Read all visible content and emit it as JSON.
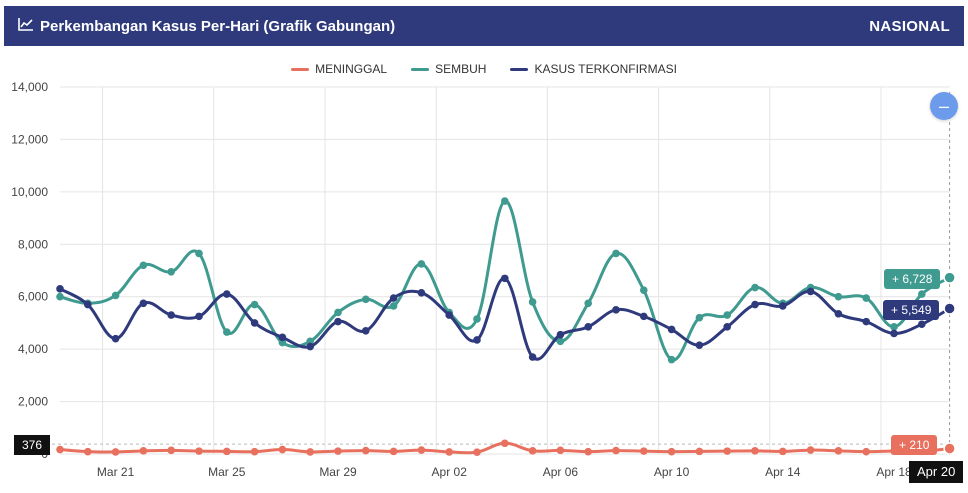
{
  "header": {
    "title": "Perkembangan Kasus Per-Hari (Grafik Gabungan)",
    "region": "NASIONAL",
    "icon": "line-chart-icon"
  },
  "zoom_button": {
    "label": "–",
    "icon": "minus-icon"
  },
  "tooltips": {
    "sembuh": "+ 6,728",
    "konfirmasi": "+ 5,549",
    "meninggal": "+ 210",
    "crosshair_y": "376",
    "crosshair_x": "Apr 20"
  },
  "colors": {
    "header": "#2e3a7c",
    "meninggal": "#e8705e",
    "sembuh": "#3f9a8f",
    "konfirmasi": "#2e3a7c"
  },
  "chart_data": {
    "type": "line",
    "x": [
      "Mar 19",
      "Mar 20",
      "Mar 21",
      "Mar 22",
      "Mar 23",
      "Mar 24",
      "Mar 25",
      "Mar 26",
      "Mar 27",
      "Mar 28",
      "Mar 29",
      "Mar 30",
      "Mar 31",
      "Apr 01",
      "Apr 02",
      "Apr 03",
      "Apr 04",
      "Apr 05",
      "Apr 06",
      "Apr 07",
      "Apr 08",
      "Apr 09",
      "Apr 10",
      "Apr 11",
      "Apr 12",
      "Apr 13",
      "Apr 14",
      "Apr 15",
      "Apr 16",
      "Apr 17",
      "Apr 18",
      "Apr 19",
      "Apr 20"
    ],
    "xticks": [
      "Mar 21",
      "Mar 25",
      "Mar 29",
      "Apr 02",
      "Apr 06",
      "Apr 10",
      "Apr 14",
      "Apr 18"
    ],
    "yticks": [
      "0",
      "2,000",
      "4,000",
      "6,000",
      "8,000",
      "10,000",
      "12,000",
      "14,000"
    ],
    "ylim": [
      0,
      14000
    ],
    "grid": true,
    "legend_position": "top-center",
    "series": [
      {
        "name": "MENINGGAL",
        "color": "#e8705e",
        "values": [
          170,
          90,
          80,
          120,
          140,
          110,
          100,
          90,
          170,
          80,
          110,
          130,
          100,
          150,
          80,
          70,
          410,
          120,
          140,
          90,
          130,
          110,
          90,
          100,
          110,
          120,
          100,
          150,
          120,
          90,
          110,
          100,
          210
        ]
      },
      {
        "name": "SEMBUH",
        "color": "#3f9a8f",
        "values": [
          6000,
          5750,
          6050,
          7200,
          6950,
          7650,
          4650,
          5700,
          4250,
          4300,
          5400,
          5900,
          5650,
          7250,
          5400,
          5150,
          9650,
          5800,
          4300,
          5750,
          7650,
          6250,
          3600,
          5200,
          5300,
          6350,
          5750,
          6350,
          6000,
          5950,
          4850,
          6100,
          6728
        ]
      },
      {
        "name": "KASUS TERKONFIRMASI",
        "color": "#2e3a7c",
        "values": [
          6300,
          5700,
          4400,
          5750,
          5300,
          5250,
          6100,
          5000,
          4450,
          4100,
          5050,
          4700,
          5950,
          6150,
          5300,
          4350,
          6700,
          3700,
          4550,
          4850,
          5500,
          5250,
          4750,
          4150,
          4850,
          5700,
          5650,
          6200,
          5350,
          5050,
          4600,
          4950,
          5549
        ]
      }
    ]
  }
}
